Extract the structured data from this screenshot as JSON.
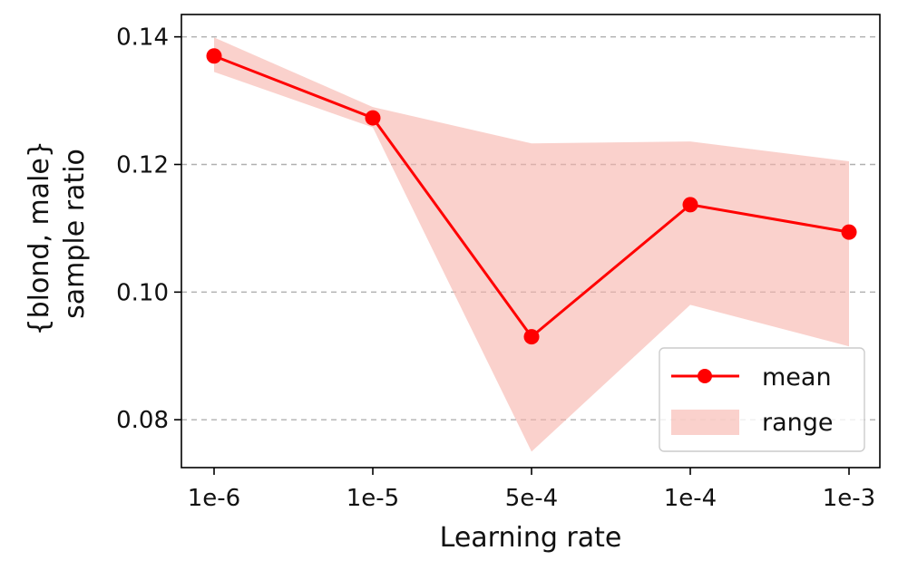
{
  "chart_data": {
    "type": "line",
    "title": "",
    "xlabel": "Learning rate",
    "ylabel_lines": [
      "{blond, male}",
      "sample ratio"
    ],
    "categories": [
      "1e-6",
      "1e-5",
      "5e-4",
      "1e-4",
      "1e-3"
    ],
    "ylim": [
      0.0725,
      0.1435
    ],
    "yticks": [
      0.08,
      0.1,
      0.12,
      0.14
    ],
    "ytick_labels": [
      "0.08",
      "0.10",
      "0.12",
      "0.14"
    ],
    "grid": "y-dashed",
    "legend_position": "lower-right",
    "series": [
      {
        "name": "mean",
        "type": "line",
        "color": "#ff0000",
        "values": [
          0.137,
          0.1273,
          0.093,
          0.1137,
          0.1094
        ]
      },
      {
        "name": "range",
        "type": "band",
        "color": "#f6b2aa",
        "lower": [
          0.1345,
          0.1258,
          0.075,
          0.098,
          0.0915
        ],
        "upper": [
          0.1399,
          0.129,
          0.1233,
          0.1236,
          0.1205
        ]
      }
    ],
    "colors": {
      "grid": "#b0b0b0",
      "axis": "#000000"
    }
  }
}
